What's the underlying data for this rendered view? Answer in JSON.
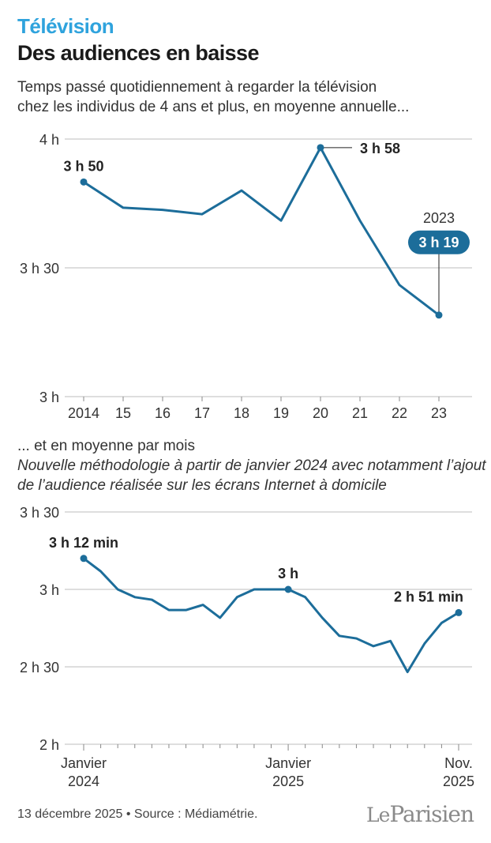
{
  "header": {
    "kicker": "Télévision",
    "headline": "Des audiences en baisse",
    "intro_line1": "Temps passé quotidiennement à regarder la télévision",
    "intro_line2": "chez les individus de 4 ans et plus, en moyenne annuelle..."
  },
  "section2": {
    "title": "... et en moyenne par mois",
    "note_line1": "Nouvelle méthodologie à partir de janvier 2024 avec notamment l’ajout",
    "note_line2": "de l’audience réalisée sur les écrans Internet à domicile"
  },
  "colors": {
    "line": "#1c6d9a",
    "accent": "#2fa3dd",
    "badge": "#1c6d9a",
    "grid": "#bdbdbd"
  },
  "chart_data": [
    {
      "type": "line",
      "title": "Temps passé quotidiennement à regarder la télévision (moyenne annuelle)",
      "unit": "minutes",
      "x": [
        2014,
        2015,
        2016,
        2017,
        2018,
        2019,
        2020,
        2021,
        2022,
        2023
      ],
      "tick_labels": [
        "2014",
        "15",
        "16",
        "17",
        "18",
        "19",
        "20",
        "21",
        "22",
        "23"
      ],
      "values": [
        230,
        224,
        223.5,
        222.5,
        228,
        221,
        238,
        221,
        206,
        199
      ],
      "ylim": [
        180,
        240
      ],
      "yticks": [
        {
          "value": 240,
          "label": "4 h"
        },
        {
          "value": 210,
          "label": "3 h 30"
        },
        {
          "value": 180,
          "label": "3 h"
        }
      ],
      "annotations": [
        {
          "index": 0,
          "text": "3 h 50"
        },
        {
          "index": 6,
          "text": "3 h 58"
        },
        {
          "index": 9,
          "text": "3 h 19",
          "year": "2023"
        }
      ]
    },
    {
      "type": "line",
      "title": "... et en moyenne par mois",
      "unit": "minutes",
      "categories": [
        "2024-01",
        "2024-02",
        "2024-03",
        "2024-04",
        "2024-05",
        "2024-06",
        "2024-07",
        "2024-08",
        "2024-09",
        "2024-10",
        "2024-11",
        "2024-12",
        "2025-01",
        "2025-02",
        "2025-03",
        "2025-04",
        "2025-05",
        "2025-06",
        "2025-07",
        "2025-08",
        "2025-09",
        "2025-10",
        "2025-11"
      ],
      "values": [
        192,
        187,
        180,
        177,
        176,
        172,
        172,
        174,
        169,
        177,
        180,
        180,
        180,
        177,
        169,
        162,
        161,
        158,
        160,
        148,
        159,
        167,
        171
      ],
      "ylim": [
        120,
        210
      ],
      "yticks": [
        {
          "value": 210,
          "label": "3 h 30"
        },
        {
          "value": 180,
          "label": "3 h"
        },
        {
          "value": 150,
          "label": "2 h 30"
        },
        {
          "value": 120,
          "label": "2 h"
        }
      ],
      "xticks": [
        {
          "index": 0,
          "line1": "Janvier",
          "line2": "2024"
        },
        {
          "index": 12,
          "line1": "Janvier",
          "line2": "2025"
        },
        {
          "index": 22,
          "line1": "Nov.",
          "line2": "2025"
        }
      ],
      "annotations": [
        {
          "index": 0,
          "text": "3 h 12 min"
        },
        {
          "index": 12,
          "text": "3 h"
        },
        {
          "index": 22,
          "text": "2 h 51 min"
        }
      ]
    }
  ],
  "footer": {
    "date_source": "13 décembre 2025 • Source : Médiamétrie.",
    "brand_le": "Le",
    "brand_name": "Parisien"
  }
}
